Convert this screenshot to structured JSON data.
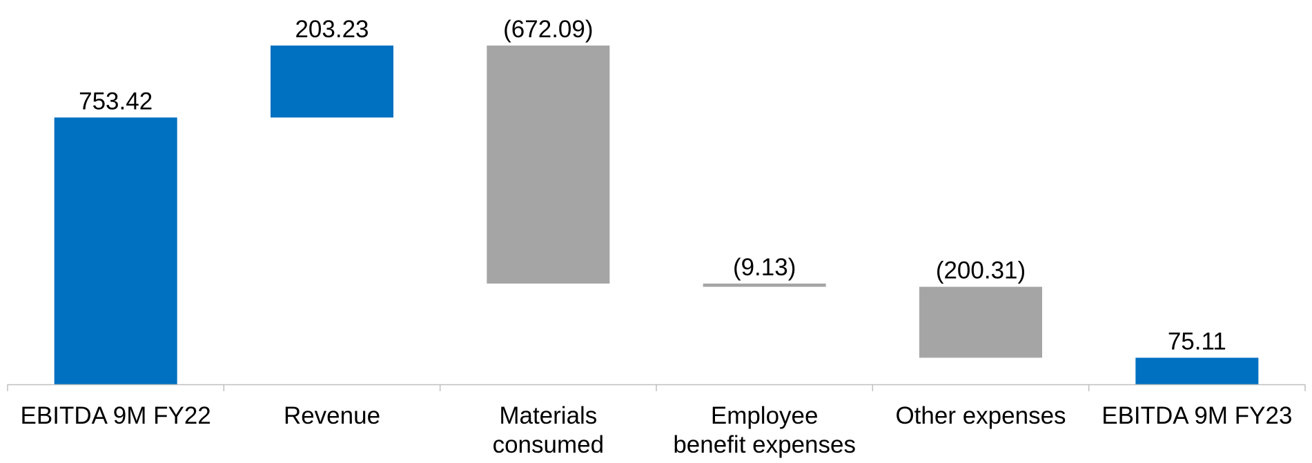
{
  "chart_data": {
    "type": "waterfall",
    "title": "",
    "xlabel": "",
    "ylabel": "",
    "ylim": [
      0,
      956.65
    ],
    "grid": false,
    "legend": "none",
    "categories": [
      [
        "EBITDA 9M FY22"
      ],
      [
        "Revenue"
      ],
      [
        "Materials",
        "consumed"
      ],
      [
        "Employee",
        "benefit expenses"
      ],
      [
        "Other expenses"
      ],
      [
        "EBITDA 9M FY23"
      ]
    ],
    "steps": [
      {
        "kind": "total",
        "value": 753.42,
        "label": "753.42"
      },
      {
        "kind": "delta",
        "value": 203.23,
        "label": "203.23"
      },
      {
        "kind": "delta",
        "value": -672.09,
        "label": "(672.09)"
      },
      {
        "kind": "delta",
        "value": -9.13,
        "label": "(9.13)"
      },
      {
        "kind": "delta",
        "value": -200.31,
        "label": "(200.31)"
      },
      {
        "kind": "total",
        "value": 75.11,
        "label": "75.11"
      }
    ],
    "colors": {
      "total": "#0070C0",
      "increase": "#0070C0",
      "decrease": "#A5A5A5",
      "axis": "#BFBFBF"
    }
  }
}
